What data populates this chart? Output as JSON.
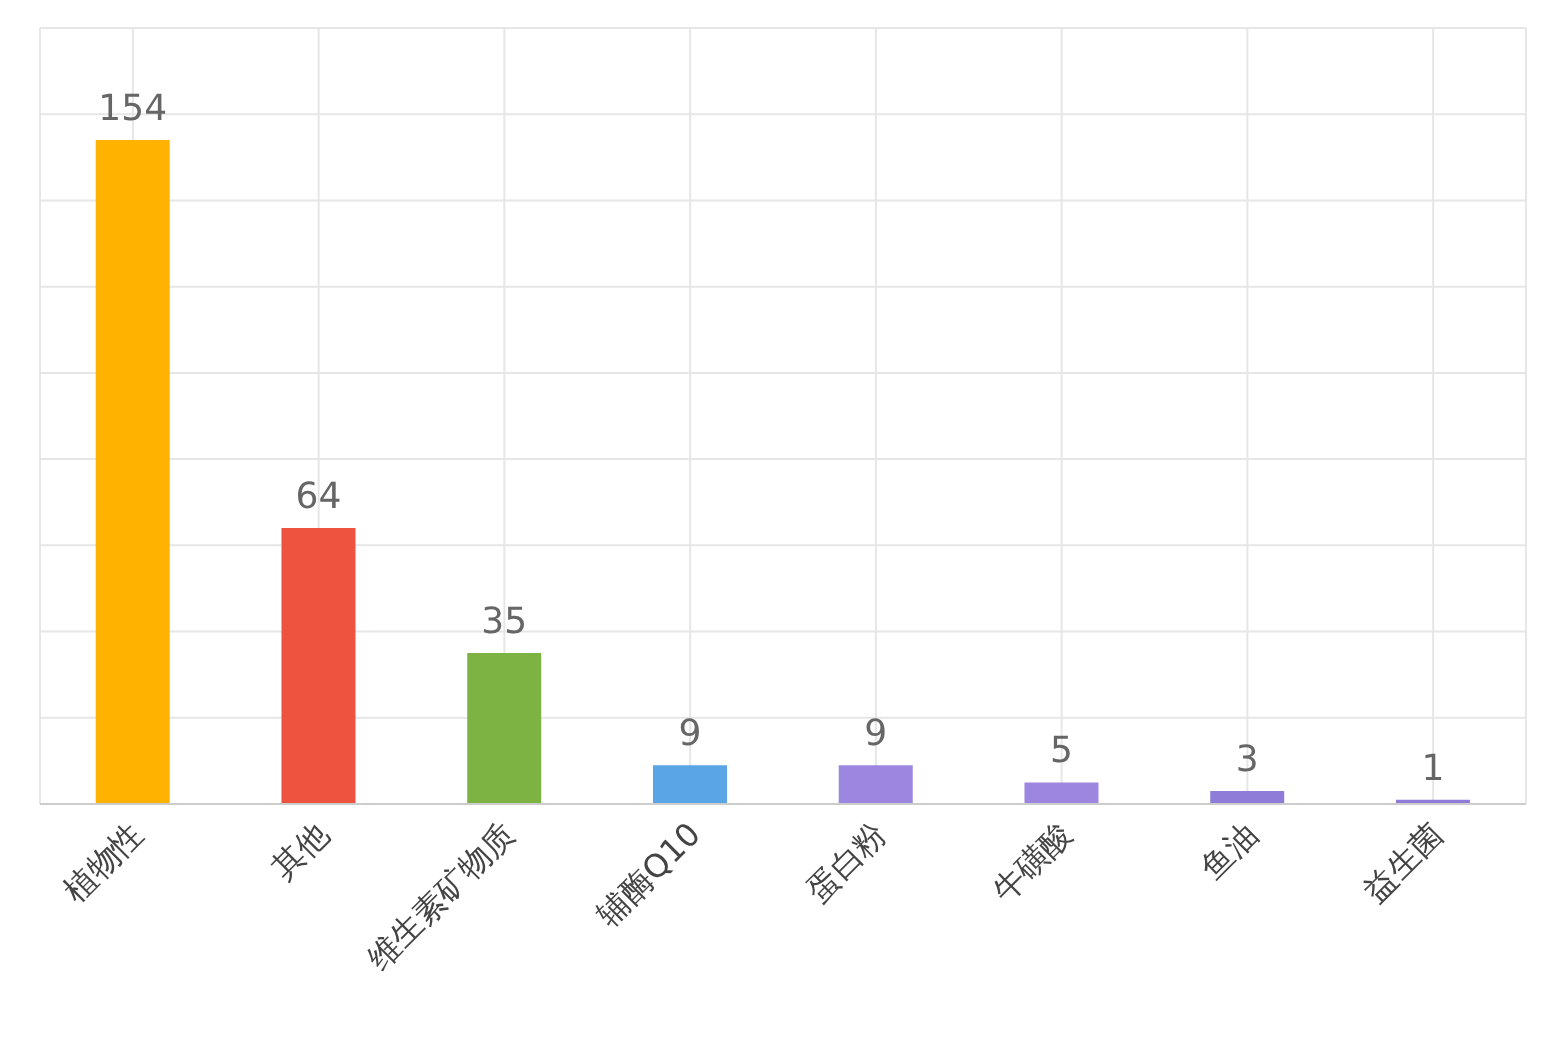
{
  "chart_data": {
    "type": "bar",
    "categories": [
      "植物性",
      "其他",
      "维生素矿物质",
      "辅酶Q10",
      "蛋白粉",
      "牛磺酸",
      "鱼油",
      "益生菌"
    ],
    "values": [
      154,
      64,
      35,
      9,
      9,
      5,
      3,
      1
    ],
    "colors": [
      "#ffb300",
      "#ee5340",
      "#7cb342",
      "#5aa5e6",
      "#9c86e0",
      "#9c86e0",
      "#8e7cd8",
      "#8e7cd8"
    ],
    "grid": true,
    "tick_labels": "x",
    "data_labels": true
  }
}
